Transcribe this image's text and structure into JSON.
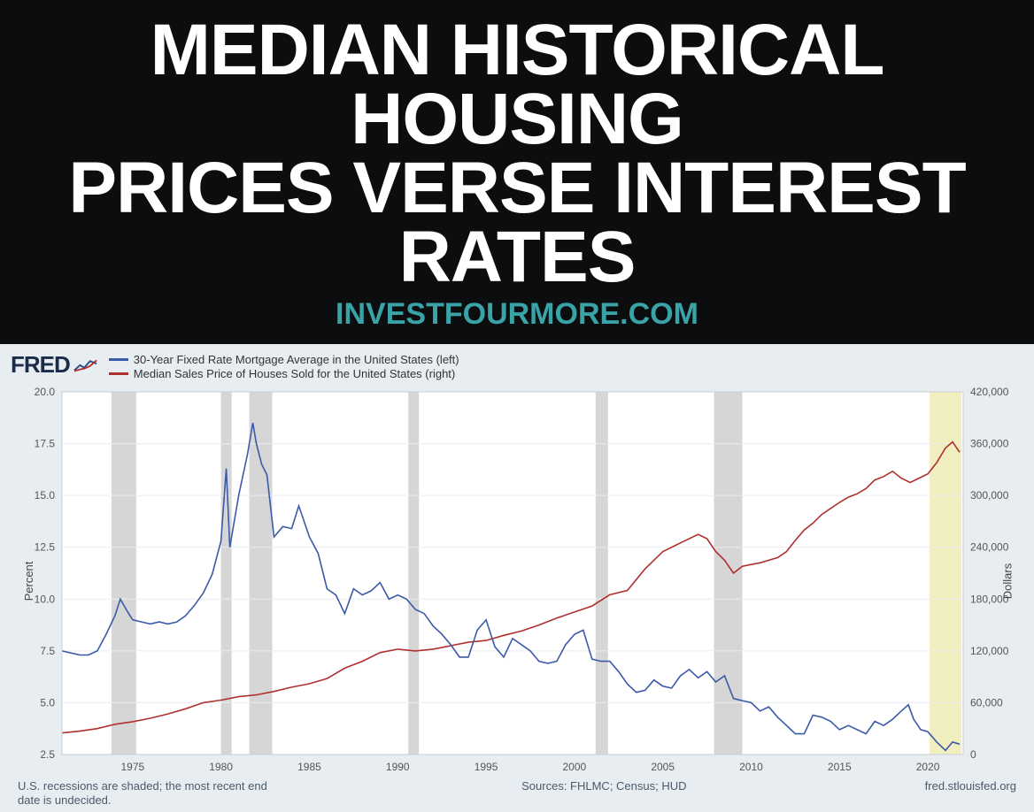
{
  "header": {
    "title_line1": "MEDIAN HISTORICAL HOUSING",
    "title_line2": "PRICES VERSE INTEREST RATES",
    "site": "INVESTFOURMORE.COM",
    "bg_color": "#0b0d0f",
    "title_color": "#ffffff",
    "site_color": "#3aa3a7",
    "title_fontsize": 82,
    "site_fontsize": 34
  },
  "chart": {
    "type": "line_dual_axis",
    "logo_text": "FRED",
    "legend": [
      {
        "color": "#3b5aa8",
        "label": "30-Year Fixed Rate Mortgage Average in the United States (left)"
      },
      {
        "color": "#b03030",
        "label": "Median Sales Price of Houses Sold for the United States (right)"
      }
    ],
    "background_color": "#e8edf2",
    "plot_bg_color": "#ffffff",
    "grid_color": "#e8edf2",
    "recession_band_color": "#d6d6d6",
    "current_band_color": "#f1eec0",
    "x": {
      "min": 1971,
      "max": 2022,
      "ticks": [
        1975,
        1980,
        1985,
        1990,
        1995,
        2000,
        2005,
        2010,
        2015,
        2020
      ]
    },
    "y_left": {
      "label": "Percent",
      "min": 2.5,
      "max": 20.0,
      "ticks": [
        2.5,
        5.0,
        7.5,
        10.0,
        12.5,
        15.0,
        17.5,
        20.0
      ]
    },
    "y_right": {
      "label": "Dollars",
      "min": 0,
      "max": 420000,
      "ticks": [
        0,
        60000,
        120000,
        180000,
        240000,
        300000,
        360000,
        420000
      ],
      "tick_labels": [
        "0",
        "60,000",
        "120,000",
        "180,000",
        "240,000",
        "300,000",
        "360,000",
        "420,000"
      ]
    },
    "recessions": [
      [
        1973.8,
        1975.2
      ],
      [
        1980.0,
        1980.6
      ],
      [
        1981.6,
        1982.9
      ],
      [
        1990.6,
        1991.2
      ],
      [
        2001.2,
        2001.9
      ],
      [
        2007.9,
        2009.5
      ]
    ],
    "current_band": [
      2020.1,
      2021.9
    ],
    "series_rate": {
      "color": "#3b5aa8",
      "line_width": 1.6,
      "points": [
        [
          1971.0,
          7.5
        ],
        [
          1971.5,
          7.4
        ],
        [
          1972.0,
          7.3
        ],
        [
          1972.5,
          7.3
        ],
        [
          1973.0,
          7.5
        ],
        [
          1973.5,
          8.3
        ],
        [
          1974.0,
          9.2
        ],
        [
          1974.3,
          10.0
        ],
        [
          1974.7,
          9.4
        ],
        [
          1975.0,
          9.0
        ],
        [
          1975.5,
          8.9
        ],
        [
          1976.0,
          8.8
        ],
        [
          1976.5,
          8.9
        ],
        [
          1977.0,
          8.8
        ],
        [
          1977.5,
          8.9
        ],
        [
          1978.0,
          9.2
        ],
        [
          1978.5,
          9.7
        ],
        [
          1979.0,
          10.3
        ],
        [
          1979.5,
          11.2
        ],
        [
          1980.0,
          12.8
        ],
        [
          1980.3,
          16.3
        ],
        [
          1980.5,
          12.5
        ],
        [
          1980.8,
          14.0
        ],
        [
          1981.0,
          15.0
        ],
        [
          1981.5,
          17.0
        ],
        [
          1981.8,
          18.5
        ],
        [
          1982.0,
          17.5
        ],
        [
          1982.3,
          16.5
        ],
        [
          1982.6,
          16.0
        ],
        [
          1983.0,
          13.0
        ],
        [
          1983.5,
          13.5
        ],
        [
          1984.0,
          13.4
        ],
        [
          1984.4,
          14.5
        ],
        [
          1984.8,
          13.5
        ],
        [
          1985.0,
          13.0
        ],
        [
          1985.5,
          12.2
        ],
        [
          1986.0,
          10.5
        ],
        [
          1986.5,
          10.2
        ],
        [
          1987.0,
          9.3
        ],
        [
          1987.5,
          10.5
        ],
        [
          1988.0,
          10.2
        ],
        [
          1988.5,
          10.4
        ],
        [
          1989.0,
          10.8
        ],
        [
          1989.5,
          10.0
        ],
        [
          1990.0,
          10.2
        ],
        [
          1990.5,
          10.0
        ],
        [
          1991.0,
          9.5
        ],
        [
          1991.5,
          9.3
        ],
        [
          1992.0,
          8.7
        ],
        [
          1992.5,
          8.3
        ],
        [
          1993.0,
          7.8
        ],
        [
          1993.5,
          7.2
        ],
        [
          1994.0,
          7.2
        ],
        [
          1994.5,
          8.5
        ],
        [
          1995.0,
          9.0
        ],
        [
          1995.5,
          7.7
        ],
        [
          1996.0,
          7.2
        ],
        [
          1996.5,
          8.1
        ],
        [
          1997.0,
          7.8
        ],
        [
          1997.5,
          7.5
        ],
        [
          1998.0,
          7.0
        ],
        [
          1998.5,
          6.9
        ],
        [
          1999.0,
          7.0
        ],
        [
          1999.5,
          7.8
        ],
        [
          2000.0,
          8.3
        ],
        [
          2000.5,
          8.5
        ],
        [
          2001.0,
          7.1
        ],
        [
          2001.5,
          7.0
        ],
        [
          2002.0,
          7.0
        ],
        [
          2002.5,
          6.5
        ],
        [
          2003.0,
          5.9
        ],
        [
          2003.5,
          5.5
        ],
        [
          2004.0,
          5.6
        ],
        [
          2004.5,
          6.1
        ],
        [
          2005.0,
          5.8
        ],
        [
          2005.5,
          5.7
        ],
        [
          2006.0,
          6.3
        ],
        [
          2006.5,
          6.6
        ],
        [
          2007.0,
          6.2
        ],
        [
          2007.5,
          6.5
        ],
        [
          2008.0,
          6.0
        ],
        [
          2008.5,
          6.3
        ],
        [
          2009.0,
          5.2
        ],
        [
          2009.5,
          5.1
        ],
        [
          2010.0,
          5.0
        ],
        [
          2010.5,
          4.6
        ],
        [
          2011.0,
          4.8
        ],
        [
          2011.5,
          4.3
        ],
        [
          2012.0,
          3.9
        ],
        [
          2012.5,
          3.5
        ],
        [
          2013.0,
          3.5
        ],
        [
          2013.5,
          4.4
        ],
        [
          2014.0,
          4.3
        ],
        [
          2014.5,
          4.1
        ],
        [
          2015.0,
          3.7
        ],
        [
          2015.5,
          3.9
        ],
        [
          2016.0,
          3.7
        ],
        [
          2016.5,
          3.5
        ],
        [
          2017.0,
          4.1
        ],
        [
          2017.5,
          3.9
        ],
        [
          2018.0,
          4.2
        ],
        [
          2018.5,
          4.6
        ],
        [
          2018.9,
          4.9
        ],
        [
          2019.2,
          4.2
        ],
        [
          2019.6,
          3.7
        ],
        [
          2020.0,
          3.6
        ],
        [
          2020.5,
          3.1
        ],
        [
          2021.0,
          2.7
        ],
        [
          2021.4,
          3.1
        ],
        [
          2021.8,
          3.0
        ]
      ]
    },
    "series_price": {
      "color": "#b03030",
      "line_width": 1.6,
      "points": [
        [
          1971.0,
          25000
        ],
        [
          1972.0,
          27000
        ],
        [
          1973.0,
          30000
        ],
        [
          1974.0,
          35000
        ],
        [
          1975.0,
          38000
        ],
        [
          1976.0,
          42000
        ],
        [
          1977.0,
          47000
        ],
        [
          1978.0,
          53000
        ],
        [
          1979.0,
          60000
        ],
        [
          1980.0,
          63000
        ],
        [
          1981.0,
          67000
        ],
        [
          1982.0,
          69000
        ],
        [
          1983.0,
          73000
        ],
        [
          1984.0,
          78000
        ],
        [
          1985.0,
          82000
        ],
        [
          1986.0,
          88000
        ],
        [
          1987.0,
          100000
        ],
        [
          1988.0,
          108000
        ],
        [
          1989.0,
          118000
        ],
        [
          1990.0,
          122000
        ],
        [
          1991.0,
          120000
        ],
        [
          1992.0,
          122000
        ],
        [
          1993.0,
          126000
        ],
        [
          1994.0,
          130000
        ],
        [
          1995.0,
          132000
        ],
        [
          1996.0,
          138000
        ],
        [
          1997.0,
          143000
        ],
        [
          1998.0,
          150000
        ],
        [
          1999.0,
          158000
        ],
        [
          2000.0,
          165000
        ],
        [
          2001.0,
          172000
        ],
        [
          2002.0,
          185000
        ],
        [
          2003.0,
          190000
        ],
        [
          2004.0,
          215000
        ],
        [
          2005.0,
          235000
        ],
        [
          2006.0,
          245000
        ],
        [
          2007.0,
          255000
        ],
        [
          2007.5,
          250000
        ],
        [
          2008.0,
          235000
        ],
        [
          2008.5,
          225000
        ],
        [
          2009.0,
          210000
        ],
        [
          2009.5,
          218000
        ],
        [
          2010.0,
          220000
        ],
        [
          2010.5,
          222000
        ],
        [
          2011.0,
          225000
        ],
        [
          2011.5,
          228000
        ],
        [
          2012.0,
          235000
        ],
        [
          2012.5,
          248000
        ],
        [
          2013.0,
          260000
        ],
        [
          2013.5,
          268000
        ],
        [
          2014.0,
          278000
        ],
        [
          2014.5,
          285000
        ],
        [
          2015.0,
          292000
        ],
        [
          2015.5,
          298000
        ],
        [
          2016.0,
          302000
        ],
        [
          2016.5,
          308000
        ],
        [
          2017.0,
          318000
        ],
        [
          2017.5,
          322000
        ],
        [
          2018.0,
          328000
        ],
        [
          2018.5,
          320000
        ],
        [
          2019.0,
          315000
        ],
        [
          2019.5,
          320000
        ],
        [
          2020.0,
          325000
        ],
        [
          2020.5,
          338000
        ],
        [
          2021.0,
          355000
        ],
        [
          2021.4,
          362000
        ],
        [
          2021.8,
          350000
        ]
      ]
    },
    "footer": {
      "recession_note": "U.S. recessions are shaded; the most recent end date is undecided.",
      "sources": "Sources: FHLMC; Census; HUD",
      "attribution": "fred.stlouisfed.org"
    }
  }
}
